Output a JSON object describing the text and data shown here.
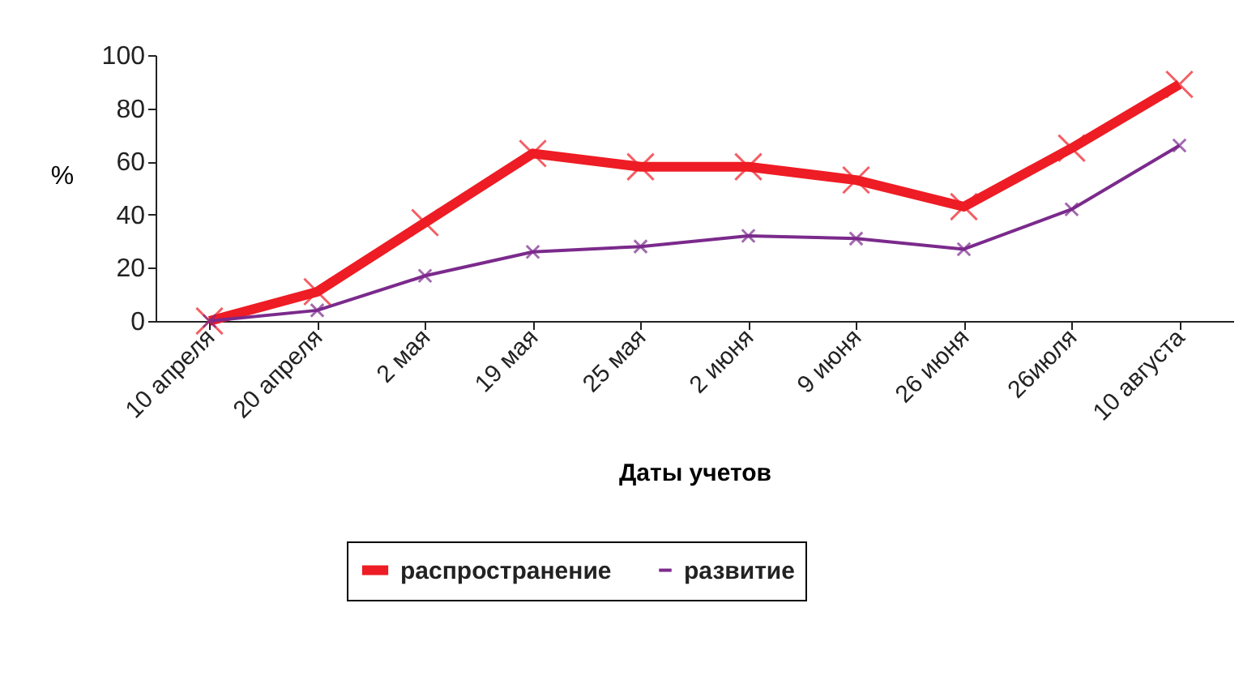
{
  "chart_data": {
    "type": "line",
    "xlabel": "Даты учетов",
    "ylabel": "%",
    "categories": [
      "10 апреля",
      "20 апреля",
      "2 мая",
      "19 мая",
      "25 мая",
      "2 июня",
      "9 июня",
      "26 июня",
      "26июля",
      "10 августа"
    ],
    "series": [
      {
        "name": "распространение",
        "color": "#ee1c24",
        "values": [
          0,
          11,
          37,
          63,
          58,
          58,
          53,
          43,
          65,
          89
        ]
      },
      {
        "name": "развитие",
        "color": "#7b2a8c",
        "values": [
          0,
          4,
          17,
          26,
          28,
          32,
          31,
          27,
          42,
          66
        ]
      }
    ],
    "ylim": [
      0,
      100
    ],
    "yticks": [
      0,
      20,
      40,
      60,
      80,
      100
    ],
    "grid": false,
    "legend": "bottom",
    "marker": "cross",
    "line_style": "solid"
  }
}
